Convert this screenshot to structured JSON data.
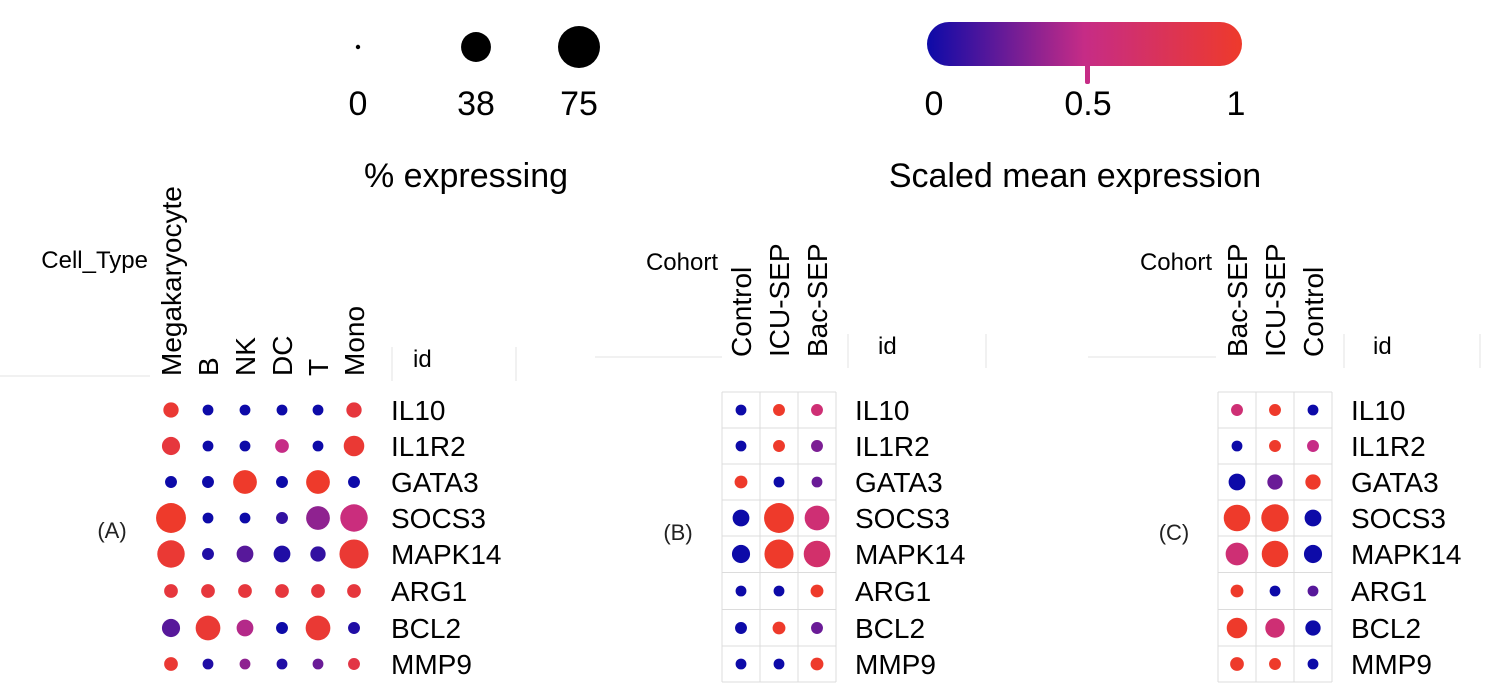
{
  "legend": {
    "size_title": "% expressing",
    "size_ticks": [
      "0",
      "38",
      "75"
    ],
    "size_values": [
      0,
      38,
      75
    ],
    "color_title": "Scaled mean expression",
    "color_ticks": [
      "0",
      "0.5",
      "1"
    ],
    "color_low": "#0d0aa8",
    "color_mid": "#c62c86",
    "color_high": "#ee3a2b"
  },
  "chart_data": [
    {
      "type": "scatter",
      "panel_label": "(A)",
      "group_title": "Cell_Type",
      "id_header": "id",
      "columns": [
        "Megakaryocyte",
        "B",
        "NK",
        "DC",
        "T",
        "Mono"
      ],
      "genes": [
        "IL10",
        "IL1R2",
        "GATA3",
        "SOCS3",
        "MAPK14",
        "ARG1",
        "BCL2",
        "MMP9"
      ],
      "pct_expressing": [
        [
          10,
          5,
          5,
          5,
          5,
          10
        ],
        [
          14,
          5,
          5,
          8,
          5,
          18
        ],
        [
          6,
          6,
          24,
          6,
          24,
          6
        ],
        [
          38,
          5,
          5,
          6,
          24,
          32
        ],
        [
          32,
          6,
          12,
          12,
          10,
          36
        ],
        [
          8,
          8,
          8,
          8,
          8,
          8
        ],
        [
          14,
          26,
          12,
          6,
          26,
          6
        ],
        [
          8,
          5,
          5,
          5,
          5,
          6
        ]
      ],
      "scaled_mean": [
        [
          0.95,
          0.0,
          0.0,
          0.0,
          0.0,
          0.9
        ],
        [
          0.9,
          0.0,
          0.0,
          0.5,
          0.0,
          0.95
        ],
        [
          0.0,
          0.0,
          1.0,
          0.0,
          1.0,
          0.0
        ],
        [
          1.0,
          0.0,
          0.0,
          0.1,
          0.35,
          0.55
        ],
        [
          0.95,
          0.05,
          0.2,
          0.05,
          0.1,
          0.95
        ],
        [
          0.9,
          0.9,
          0.9,
          0.9,
          0.9,
          0.9
        ],
        [
          0.2,
          0.95,
          0.45,
          0.0,
          0.95,
          0.05
        ],
        [
          0.95,
          0.05,
          0.35,
          0.05,
          0.25,
          0.85
        ]
      ]
    },
    {
      "type": "scatter",
      "panel_label": "(B)",
      "group_title": "Cohort",
      "id_header": "id",
      "columns": [
        "Control",
        "ICU-SEP",
        "Bac-SEP"
      ],
      "genes": [
        "IL10",
        "IL1R2",
        "GATA3",
        "SOCS3",
        "MAPK14",
        "ARG1",
        "BCL2",
        "MMP9"
      ],
      "pct_expressing": [
        [
          5,
          6,
          6
        ],
        [
          5,
          6,
          6
        ],
        [
          7,
          5,
          5
        ],
        [
          12,
          38,
          26
        ],
        [
          14,
          36,
          30
        ],
        [
          5,
          5,
          7
        ],
        [
          6,
          7,
          6
        ],
        [
          5,
          5,
          7
        ]
      ],
      "scaled_mean": [
        [
          0.0,
          1.0,
          0.6
        ],
        [
          0.0,
          1.0,
          0.3
        ],
        [
          1.0,
          0.0,
          0.25
        ],
        [
          0.0,
          1.0,
          0.6
        ],
        [
          0.0,
          1.0,
          0.65
        ],
        [
          0.0,
          0.0,
          1.0
        ],
        [
          0.0,
          1.0,
          0.25
        ],
        [
          0.0,
          0.0,
          1.0
        ]
      ]
    },
    {
      "type": "scatter",
      "panel_label": "(C)",
      "group_title": "Cohort",
      "id_header": "id",
      "columns": [
        "Bac-SEP",
        "ICU-SEP",
        "Control"
      ],
      "genes": [
        "IL10",
        "IL1R2",
        "GATA3",
        "SOCS3",
        "MAPK14",
        "ARG1",
        "BCL2",
        "MMP9"
      ],
      "pct_expressing": [
        [
          6,
          6,
          5
        ],
        [
          5,
          6,
          6
        ],
        [
          12,
          10,
          10
        ],
        [
          30,
          32,
          12
        ],
        [
          22,
          30,
          14
        ],
        [
          7,
          5,
          5
        ],
        [
          18,
          16,
          10
        ],
        [
          8,
          6,
          5
        ]
      ],
      "scaled_mean": [
        [
          0.6,
          1.0,
          0.0
        ],
        [
          0.0,
          1.0,
          0.5
        ],
        [
          0.0,
          0.25,
          1.0
        ],
        [
          1.0,
          1.0,
          0.0
        ],
        [
          0.6,
          1.0,
          0.0
        ],
        [
          1.0,
          0.0,
          0.2
        ],
        [
          1.0,
          0.6,
          0.0
        ],
        [
          1.0,
          1.0,
          0.0
        ]
      ]
    }
  ]
}
